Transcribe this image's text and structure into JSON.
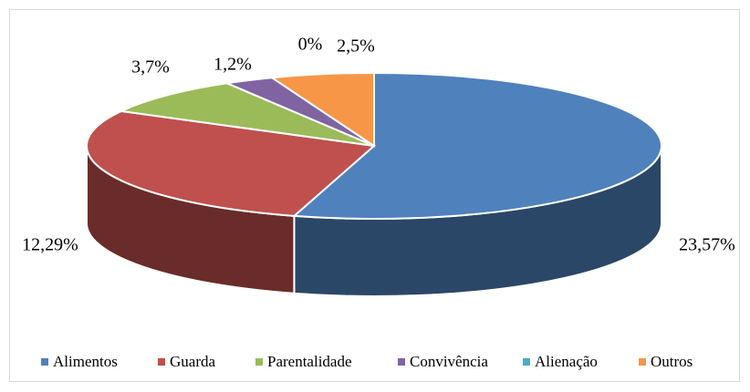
{
  "chart_data": {
    "type": "pie3d",
    "categories": [
      "Alimentos",
      "Guarda",
      "Parentalidade",
      "Convivência",
      "Alienação",
      "Outros"
    ],
    "values": [
      23.57,
      12.29,
      3.7,
      1.2,
      0,
      2.5
    ],
    "value_labels": [
      "23,57%",
      "12,29%",
      "3,7%",
      "1,2%",
      "0%",
      "2,5%"
    ],
    "colors": [
      "#4f81bd",
      "#c0504d",
      "#9bbb59",
      "#8064a2",
      "#4bacc6",
      "#f79646"
    ],
    "legend": "bottom"
  }
}
